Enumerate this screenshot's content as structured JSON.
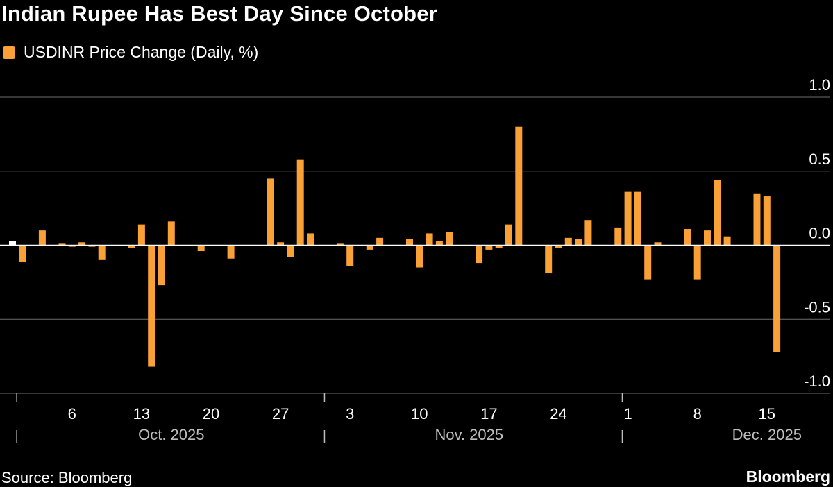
{
  "title": "Indian Rupee Has Best Day Since October",
  "legend": {
    "label": "USDINR Price Change (Daily, %)",
    "color": "#f9a037"
  },
  "source": "Source: Bloomberg",
  "brand": "Bloomberg",
  "colors": {
    "bar": "#f9a037",
    "latest": "#ffffff",
    "grid": "#6e6e6e",
    "zero": "#ffffff"
  },
  "chart_data": {
    "type": "bar",
    "title": "Indian Rupee Has Best Day Since October",
    "xlabel": "",
    "ylabel": "USDINR Price Change (Daily, %)",
    "ylim": [
      -1.0,
      1.0
    ],
    "y_ticks": [
      1.0,
      0.5,
      0.0,
      -0.5,
      -1.0
    ],
    "y_tick_labels": [
      "1.0",
      "0.5",
      "0.0",
      "-0.5",
      "-1.0"
    ],
    "grid": true,
    "x_tick_labels": [
      {
        "label": "6",
        "day": 6
      },
      {
        "label": "13",
        "day": 13
      },
      {
        "label": "20",
        "day": 20
      },
      {
        "label": "27",
        "day": 27
      },
      {
        "label": "3",
        "day": 34
      },
      {
        "label": "10",
        "day": 41
      },
      {
        "label": "17",
        "day": 48
      },
      {
        "label": "24",
        "day": 55
      },
      {
        "label": "1",
        "day": 62
      },
      {
        "label": "8",
        "day": 69
      },
      {
        "label": "15",
        "day": 76
      }
    ],
    "month_labels": [
      {
        "label": "Oct. 2025",
        "day": 16
      },
      {
        "label": "Nov. 2025",
        "day": 46
      },
      {
        "label": "Dec. 2025",
        "day": 76
      }
    ],
    "month_separators": [
      1,
      32,
      62
    ],
    "series": [
      {
        "name": "USDINR Price Change (Daily, %)",
        "days": [
          0,
          1,
          3,
          5,
          6,
          7,
          8,
          9,
          12,
          13,
          14,
          15,
          16,
          19,
          22,
          26,
          27,
          28,
          29,
          30,
          33,
          34,
          36,
          37,
          40,
          41,
          42,
          43,
          44,
          47,
          48,
          49,
          50,
          51,
          54,
          55,
          56,
          57,
          58,
          61,
          62,
          63,
          64,
          65,
          68,
          69,
          70,
          71,
          72,
          75,
          76,
          77
        ],
        "values": [
          0.03,
          -0.11,
          0.1,
          0.01,
          -0.01,
          0.02,
          -0.01,
          -0.1,
          -0.02,
          0.14,
          -0.82,
          -0.27,
          0.16,
          -0.04,
          -0.09,
          0.45,
          0.02,
          -0.08,
          0.58,
          0.08,
          0.01,
          -0.14,
          -0.03,
          0.05,
          0.04,
          -0.15,
          0.08,
          0.03,
          0.09,
          -0.12,
          -0.03,
          -0.02,
          0.14,
          0.8,
          -0.19,
          -0.02,
          0.05,
          0.04,
          0.17,
          0.12,
          0.36,
          0.36,
          -0.23,
          0.02,
          0.11,
          -0.23,
          0.1,
          0.44,
          0.06,
          0.35,
          0.33,
          -0.72
        ]
      }
    ],
    "highlight_day": 0
  }
}
